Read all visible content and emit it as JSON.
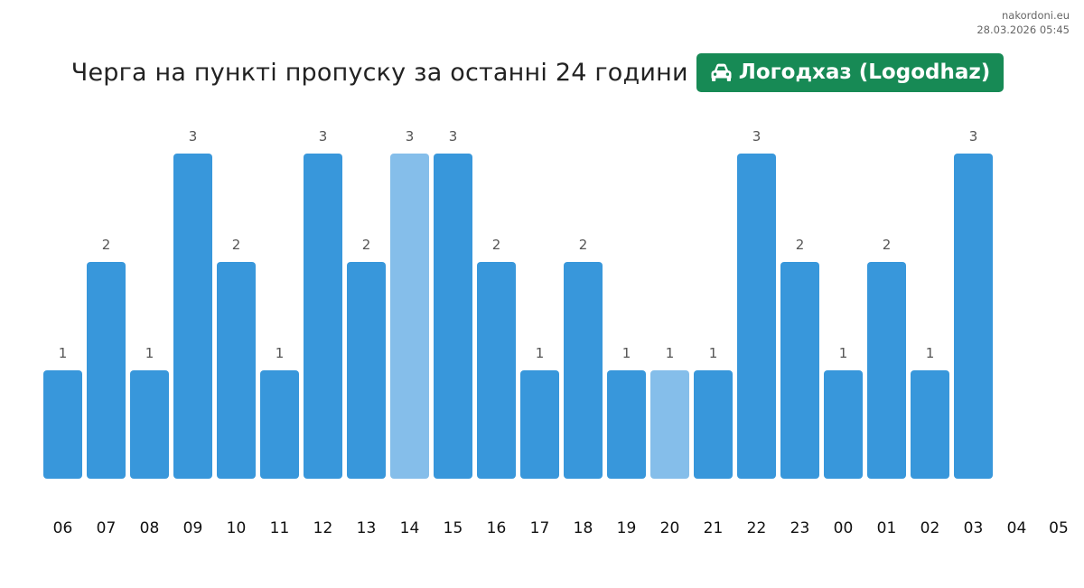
{
  "source": {
    "site": "nakordoni.eu",
    "timestamp": "28.03.2026 05:45"
  },
  "header": {
    "title": "Черга на пункті пропуску за останні 24 години",
    "checkpoint": "Логодхаз (Logodhaz)",
    "icon": "car-icon"
  },
  "colors": {
    "bar": "#3897db",
    "bar_highlight": "#85beea",
    "badge": "#178a55"
  },
  "chart_data": {
    "type": "bar",
    "categories": [
      "06",
      "07",
      "08",
      "09",
      "10",
      "11",
      "12",
      "13",
      "14",
      "15",
      "16",
      "17",
      "18",
      "19",
      "20",
      "21",
      "22",
      "23",
      "00",
      "01",
      "02",
      "03",
      "04",
      "05"
    ],
    "values": [
      1,
      2,
      1,
      3,
      2,
      1,
      3,
      2,
      3,
      3,
      2,
      1,
      2,
      1,
      1,
      1,
      3,
      2,
      1,
      2,
      1,
      3,
      null,
      null
    ],
    "highlighted": [
      "14",
      "20"
    ],
    "ylim": [
      0,
      3
    ]
  }
}
